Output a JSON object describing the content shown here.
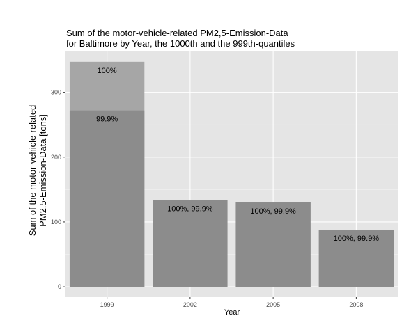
{
  "chart_data": {
    "type": "bar",
    "title_lines": [
      "Sum of the motor-vehicle-related PM2,5-Emission-Data",
      "for Baltimore by Year, the 1000th and the 999th-quantiles"
    ],
    "xlabel": "Year",
    "ylabel_lines": [
      "Sum of the motor-vehicle-related",
      "PM2.5-Emission-Data [tons]"
    ],
    "categories": [
      "1999",
      "2002",
      "2005",
      "2008"
    ],
    "series": [
      {
        "name": "100%",
        "values": [
          347,
          134,
          130,
          88
        ],
        "color": "#a6a6a6"
      },
      {
        "name": "99.9%",
        "values": [
          272,
          134,
          130,
          88
        ],
        "color": "#8c8c8c"
      }
    ],
    "bar_labels": [
      [
        "100%",
        "99.9%"
      ],
      [
        "100%, 99.9%"
      ],
      [
        "100%, 99.9%"
      ],
      [
        "100%, 99.9%"
      ]
    ],
    "y_ticks": [
      0,
      100,
      200,
      300
    ],
    "ylim": [
      -16,
      364
    ],
    "grid": true,
    "panel_background": "#e5e5e5",
    "grid_color": "#ffffff",
    "legend": "none"
  }
}
